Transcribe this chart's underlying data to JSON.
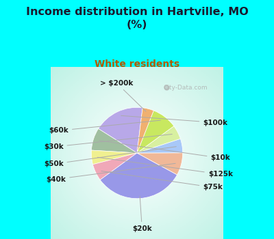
{
  "title": "Income distribution in Hartville, MO\n(%)",
  "subtitle": "White residents",
  "title_color": "#1a1a2e",
  "subtitle_color": "#b05a00",
  "bg_cyan": "#00ffff",
  "labels": [
    "$100k",
    "$10k",
    "$125k",
    "$75k",
    "$20k",
    "$40k",
    "$50k",
    "$30k",
    "$60k",
    "> $200k"
  ],
  "values": [
    18,
    8,
    5,
    6,
    32,
    8,
    5,
    5,
    9,
    4
  ],
  "colors": [
    "#b8a8e8",
    "#a0bfa0",
    "#f0f090",
    "#f0a8b8",
    "#9898e8",
    "#f0b898",
    "#a8c8f8",
    "#d8f0a0",
    "#c8e860",
    "#f0b070"
  ],
  "startangle": 83,
  "watermark": "City-Data.com"
}
